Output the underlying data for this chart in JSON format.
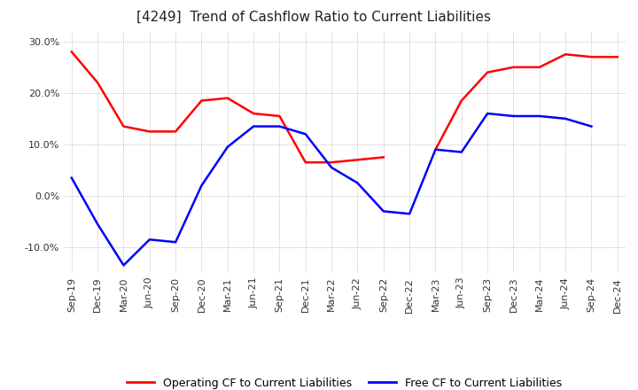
{
  "title": "[4249]  Trend of Cashflow Ratio to Current Liabilities",
  "x_labels": [
    "Sep-19",
    "Dec-19",
    "Mar-20",
    "Jun-20",
    "Sep-20",
    "Dec-20",
    "Mar-21",
    "Jun-21",
    "Sep-21",
    "Dec-21",
    "Mar-22",
    "Jun-22",
    "Sep-22",
    "Dec-22",
    "Mar-23",
    "Jun-23",
    "Sep-23",
    "Dec-23",
    "Mar-24",
    "Jun-24",
    "Sep-24",
    "Dec-24"
  ],
  "operating_cf": [
    28.0,
    22.0,
    13.5,
    12.5,
    12.5,
    18.5,
    19.0,
    16.0,
    15.5,
    6.5,
    6.5,
    7.0,
    7.5,
    null,
    9.0,
    18.5,
    24.0,
    25.0,
    25.0,
    27.5,
    27.0,
    27.0
  ],
  "free_cf": [
    3.5,
    -5.5,
    -13.5,
    -8.5,
    -9.0,
    2.0,
    9.5,
    13.5,
    13.5,
    12.0,
    5.5,
    2.5,
    -3.0,
    -3.5,
    9.0,
    8.5,
    16.0,
    15.5,
    15.5,
    15.0,
    13.5,
    null
  ],
  "ylim": [
    -15,
    32
  ],
  "yticks": [
    -10.0,
    0.0,
    10.0,
    20.0,
    30.0
  ],
  "operating_color": "#ff0000",
  "free_color": "#0000ff",
  "grid_color": "#aaaaaa",
  "background_color": "#ffffff",
  "title_fontsize": 11,
  "legend_labels": [
    "Operating CF to Current Liabilities",
    "Free CF to Current Liabilities"
  ]
}
